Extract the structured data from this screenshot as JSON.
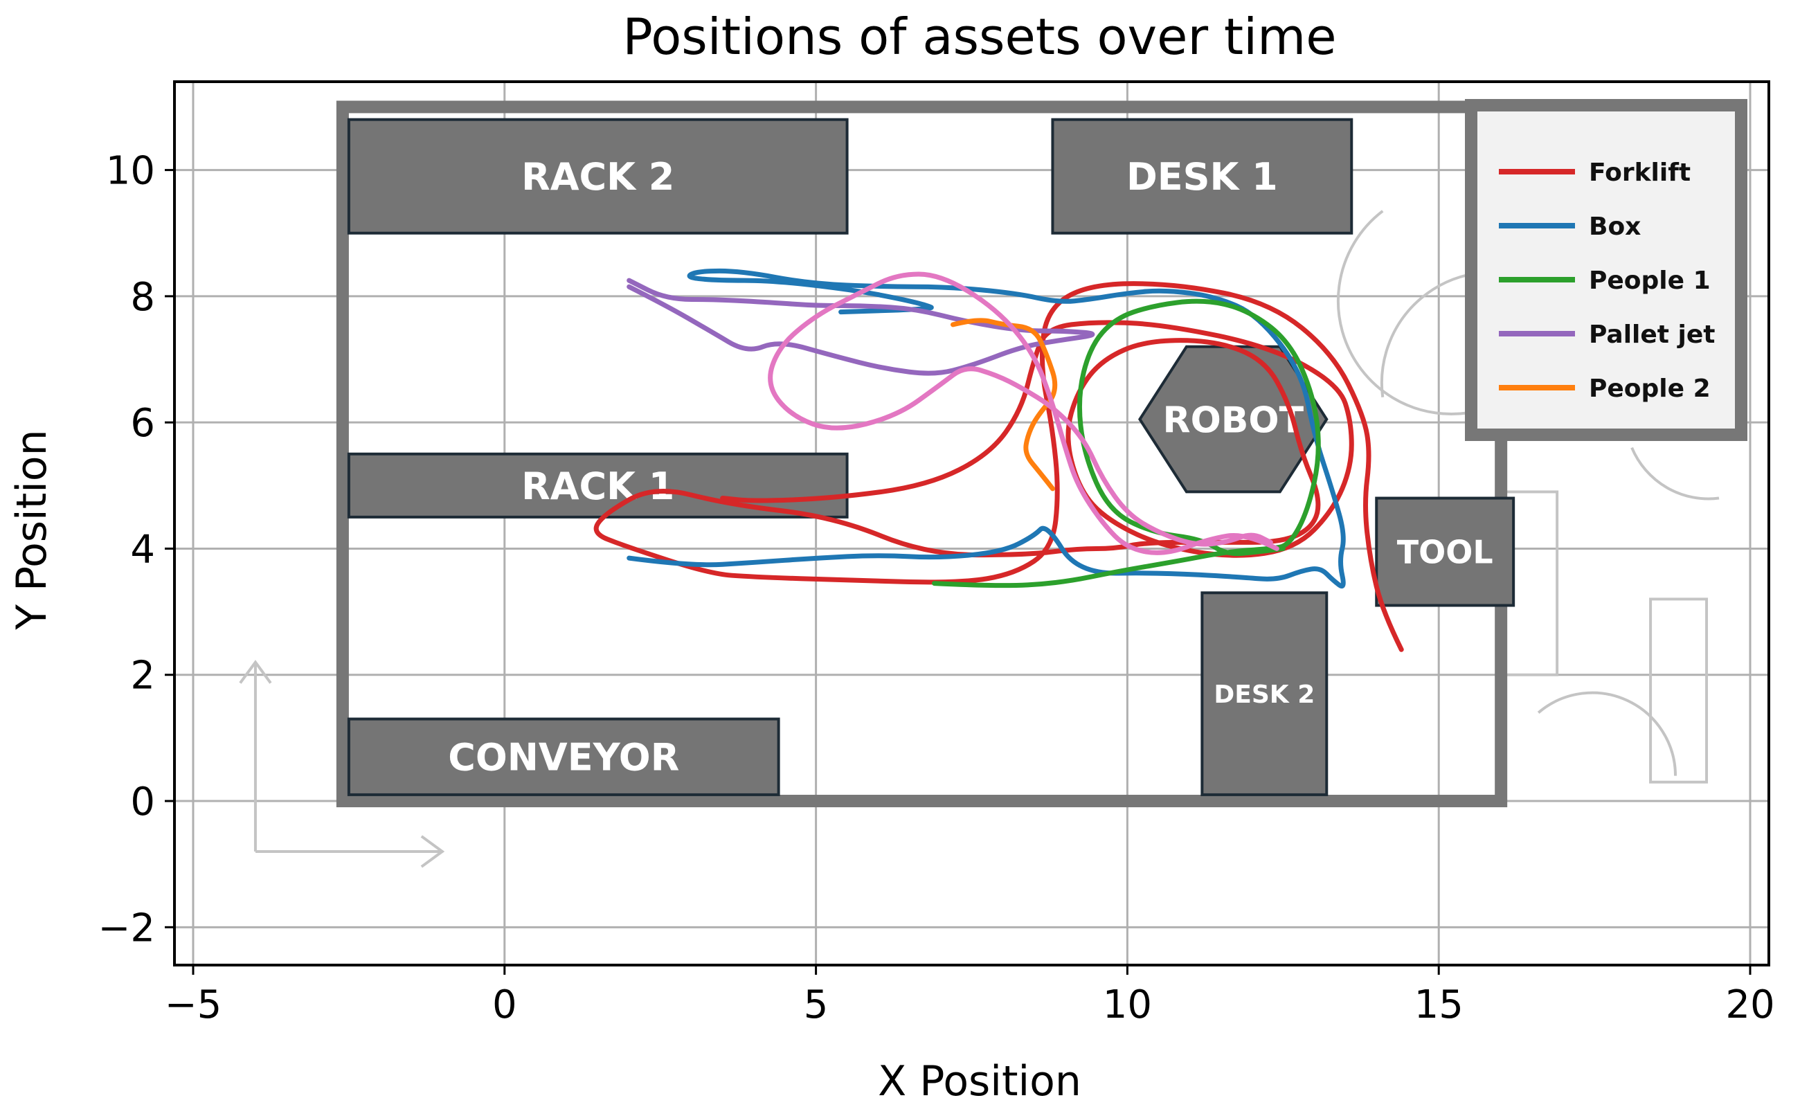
{
  "chart_data": {
    "type": "line",
    "title": "Positions of assets over time",
    "xlabel": "X Position",
    "ylabel": "Y Position",
    "xlim": [
      -5.3,
      20.3
    ],
    "ylim": [
      -2.6,
      11.4
    ],
    "xticks": [
      -5,
      0,
      5,
      10,
      15,
      20
    ],
    "xtick_labels": [
      "−5",
      "0",
      "5",
      "10",
      "15",
      "20"
    ],
    "yticks": [
      -2,
      0,
      2,
      4,
      6,
      8,
      10
    ],
    "ytick_labels": [
      "−2",
      "0",
      "2",
      "4",
      "6",
      "8",
      "10"
    ],
    "grid": true,
    "legend_position": "top-right",
    "floor": {
      "x": [
        -2.6,
        16.0
      ],
      "y": [
        0.0,
        11.0
      ]
    },
    "zones": [
      {
        "label": "RACK 2",
        "x0": -2.5,
        "x1": 5.5,
        "y0": 9.0,
        "y1": 10.8
      },
      {
        "label": "DESK 1",
        "x0": 8.8,
        "x1": 13.6,
        "y0": 9.0,
        "y1": 10.8
      },
      {
        "label": "RACK 1",
        "x0": -2.5,
        "x1": 5.5,
        "y0": 4.5,
        "y1": 5.5
      },
      {
        "label": "CONVEYOR",
        "x0": -2.5,
        "x1": 4.4,
        "y0": 0.1,
        "y1": 1.3
      },
      {
        "label": "TOOL",
        "x0": 14.0,
        "x1": 16.2,
        "y0": 3.1,
        "y1": 4.8
      },
      {
        "label": "DESK 2",
        "x0": 11.2,
        "x1": 13.2,
        "y0": 0.1,
        "y1": 3.3
      },
      {
        "label": "ROBOT",
        "shape": "hexagon",
        "cx": 11.7,
        "cy": 6.05,
        "rx": 1.5,
        "ry": 1.15
      }
    ],
    "series": [
      {
        "name": "Forklift",
        "color": "#d62728",
        "x": [
          14.4,
          14.1,
          13.9,
          13.8,
          13.9,
          13.8,
          13.3,
          12.3,
          10.8,
          9.4,
          8.7,
          8.6,
          8.8,
          8.9,
          8.8,
          8.2,
          7.3,
          5.5,
          4.0,
          3.3,
          1.9,
          1.4,
          1.6,
          2.4,
          3.6,
          5.3,
          6.8,
          8.4,
          9.2,
          9.8,
          10.3,
          11.5,
          12.5,
          13.0,
          13.1,
          12.8,
          12.6,
          12.2,
          11.4,
          10.3,
          9.6,
          9.2,
          9.0,
          9.2,
          9.6,
          10.5,
          11.7,
          12.7,
          13.3,
          13.6,
          13.6,
          13.4,
          12.3,
          10.6,
          9.5,
          8.7,
          8.5,
          8.3,
          7.8,
          6.8,
          5.3,
          4.0,
          3.5
        ],
        "y": [
          2.4,
          3.0,
          3.8,
          4.7,
          5.5,
          6.1,
          7.1,
          7.9,
          8.2,
          8.2,
          7.8,
          6.9,
          5.9,
          4.9,
          4.0,
          3.6,
          3.45,
          3.5,
          3.55,
          3.6,
          4.05,
          4.25,
          4.55,
          5.0,
          4.7,
          4.5,
          3.9,
          3.9,
          4.0,
          4.0,
          4.1,
          4.1,
          4.1,
          4.35,
          4.8,
          5.5,
          6.3,
          7.0,
          7.3,
          7.3,
          7.0,
          6.5,
          5.8,
          5.0,
          4.5,
          4.05,
          3.85,
          4.0,
          4.6,
          5.3,
          6.0,
          6.6,
          7.2,
          7.55,
          7.6,
          7.5,
          7.0,
          6.2,
          5.5,
          5.0,
          4.8,
          4.75,
          4.8
        ]
      },
      {
        "name": "Box",
        "color": "#1f77b4",
        "x": [
          2.0,
          3.0,
          4.0,
          5.0,
          6.0,
          7.0,
          8.0,
          8.5,
          8.7,
          9.2,
          10.5,
          11.8,
          12.4,
          12.8,
          13.1,
          13.3,
          13.5,
          13.4,
          13.5,
          13.3,
          13.0,
          12.8,
          12.1,
          11.4,
          10.6,
          10.0,
          9.4,
          8.9,
          8.2,
          7.1,
          6.1,
          4.9,
          3.8,
          3.1,
          2.9,
          3.4,
          4.3,
          5.6,
          6.4,
          6.8,
          6.9,
          5.4
        ],
        "y": [
          3.85,
          3.72,
          3.78,
          3.85,
          3.9,
          3.85,
          3.95,
          4.2,
          4.4,
          3.6,
          3.62,
          3.55,
          3.5,
          3.65,
          3.7,
          3.5,
          3.35,
          3.8,
          4.2,
          4.9,
          5.8,
          6.8,
          7.7,
          8.0,
          8.1,
          8.05,
          7.95,
          7.9,
          8.05,
          8.15,
          8.15,
          8.2,
          8.4,
          8.4,
          8.3,
          8.25,
          8.25,
          8.1,
          7.95,
          7.85,
          7.8,
          7.75
        ]
      },
      {
        "name": "People 1",
        "color": "#2ca02c",
        "x": [
          6.9,
          7.9,
          8.9,
          9.9,
          10.8,
          11.6,
          12.3,
          12.6,
          12.9,
          13.1,
          13.0,
          12.6,
          11.9,
          11.2,
          10.4,
          9.8,
          9.4,
          9.2,
          9.3,
          9.7,
          10.4,
          11.2,
          11.6,
          12.1,
          12.5
        ],
        "y": [
          3.45,
          3.4,
          3.45,
          3.65,
          3.8,
          3.95,
          4.0,
          4.05,
          4.6,
          5.5,
          6.4,
          7.3,
          7.8,
          7.95,
          7.85,
          7.65,
          7.2,
          6.4,
          5.5,
          4.6,
          4.25,
          4.15,
          3.9,
          3.95,
          4.0
        ]
      },
      {
        "name": "Pallet jet",
        "color": "#9467bd",
        "x": [
          2.0,
          2.6,
          3.3,
          3.9,
          4.4,
          5.3,
          6.1,
          6.9,
          7.5,
          8.3,
          8.9,
          9.6,
          9.0,
          8.3,
          7.4,
          6.6,
          5.8,
          5.0,
          4.3,
          3.4,
          2.6,
          2.0
        ],
        "y": [
          8.15,
          7.85,
          7.45,
          7.1,
          7.3,
          7.05,
          6.85,
          6.75,
          6.9,
          7.2,
          7.3,
          7.4,
          7.45,
          7.45,
          7.6,
          7.8,
          7.85,
          7.85,
          7.9,
          7.95,
          7.95,
          8.25
        ]
      },
      {
        "name": "People 2",
        "color": "#ff7f0e",
        "x": [
          7.2,
          7.6,
          8.0,
          8.5,
          8.7,
          8.9,
          8.55,
          8.4,
          8.35,
          8.6,
          8.8
        ],
        "y": [
          7.55,
          7.65,
          7.55,
          7.5,
          7.1,
          6.5,
          6.1,
          5.8,
          5.5,
          5.2,
          4.95
        ]
      },
      {
        "name": "",
        "color": "#e377c2",
        "x": [
          12.4,
          11.9,
          11.3,
          10.6,
          10.0,
          9.6,
          9.2,
          9.0,
          8.8,
          8.5,
          7.9,
          7.0,
          6.3,
          5.7,
          5.0,
          4.4,
          4.2,
          4.6,
          5.3,
          6.3,
          7.0,
          7.4,
          7.9,
          8.3,
          8.8,
          9.3,
          9.6,
          10.0,
          10.5,
          11.1,
          11.6,
          12.0,
          12.3
        ],
        "y": [
          4.0,
          4.25,
          4.15,
          3.9,
          4.0,
          4.4,
          5.0,
          5.6,
          6.3,
          7.1,
          7.8,
          8.35,
          8.35,
          8.05,
          7.7,
          7.2,
          6.6,
          6.1,
          5.85,
          6.1,
          6.6,
          6.9,
          6.75,
          6.55,
          6.25,
          5.75,
          5.1,
          4.55,
          4.25,
          4.05,
          4.1,
          4.25,
          4.1
        ]
      }
    ]
  }
}
